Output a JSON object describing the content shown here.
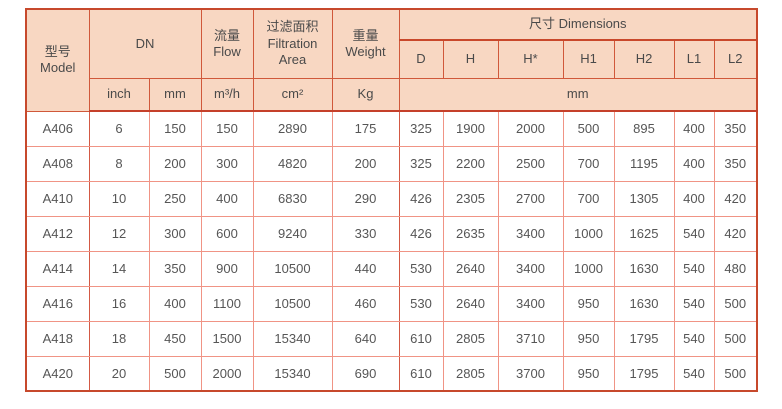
{
  "table": {
    "header": {
      "model": {
        "zh": "型号",
        "en": "Model"
      },
      "dn": "DN",
      "flow": {
        "zh": "流量",
        "en": "Flow"
      },
      "filtration": {
        "zh": "过滤面积",
        "en": "Filtration Area"
      },
      "weight": {
        "zh": "重量",
        "en": "Weight"
      },
      "dimensions": {
        "zh": "尺寸",
        "en": "Dimensions"
      },
      "dim_cols": [
        "D",
        "H",
        "H*",
        "H1",
        "H2",
        "L1",
        "L2"
      ],
      "units": {
        "inch": "inch",
        "mm": "mm",
        "flow": "m³/h",
        "filtration": "cm²",
        "weight": "Kg",
        "dims_mm": "mm"
      }
    },
    "rows": [
      {
        "model": "A406",
        "inch": "6",
        "mm": "150",
        "flow": "150",
        "area": "2890",
        "weight": "175",
        "dims": [
          "325",
          "1900",
          "2000",
          "500",
          "895",
          "400",
          "350"
        ]
      },
      {
        "model": "A408",
        "inch": "8",
        "mm": "200",
        "flow": "300",
        "area": "4820",
        "weight": "200",
        "dims": [
          "325",
          "2200",
          "2500",
          "700",
          "1195",
          "400",
          "350"
        ]
      },
      {
        "model": "A410",
        "inch": "10",
        "mm": "250",
        "flow": "400",
        "area": "6830",
        "weight": "290",
        "dims": [
          "426",
          "2305",
          "2700",
          "700",
          "1305",
          "400",
          "420"
        ]
      },
      {
        "model": "A412",
        "inch": "12",
        "mm": "300",
        "flow": "600",
        "area": "9240",
        "weight": "330",
        "dims": [
          "426",
          "2635",
          "3400",
          "1000",
          "1625",
          "540",
          "420"
        ]
      },
      {
        "model": "A414",
        "inch": "14",
        "mm": "350",
        "flow": "900",
        "area": "10500",
        "weight": "440",
        "dims": [
          "530",
          "2640",
          "3400",
          "1000",
          "1630",
          "540",
          "480"
        ]
      },
      {
        "model": "A416",
        "inch": "16",
        "mm": "400",
        "flow": "1100",
        "area": "10500",
        "weight": "460",
        "dims": [
          "530",
          "2640",
          "3400",
          "950",
          "1630",
          "540",
          "500"
        ]
      },
      {
        "model": "A418",
        "inch": "18",
        "mm": "450",
        "flow": "1500",
        "area": "15340",
        "weight": "640",
        "dims": [
          "610",
          "2805",
          "3710",
          "950",
          "1795",
          "540",
          "500"
        ]
      },
      {
        "model": "A420",
        "inch": "20",
        "mm": "500",
        "flow": "2000",
        "area": "15340",
        "weight": "690",
        "dims": [
          "610",
          "2805",
          "3700",
          "950",
          "1795",
          "540",
          "500"
        ]
      }
    ],
    "colors": {
      "header_background": "#f8d7c2",
      "outer_border": "#c7492c",
      "header_grid": "#d0583a",
      "data_grid": "#f09485",
      "text": "#4f4f4f"
    }
  }
}
